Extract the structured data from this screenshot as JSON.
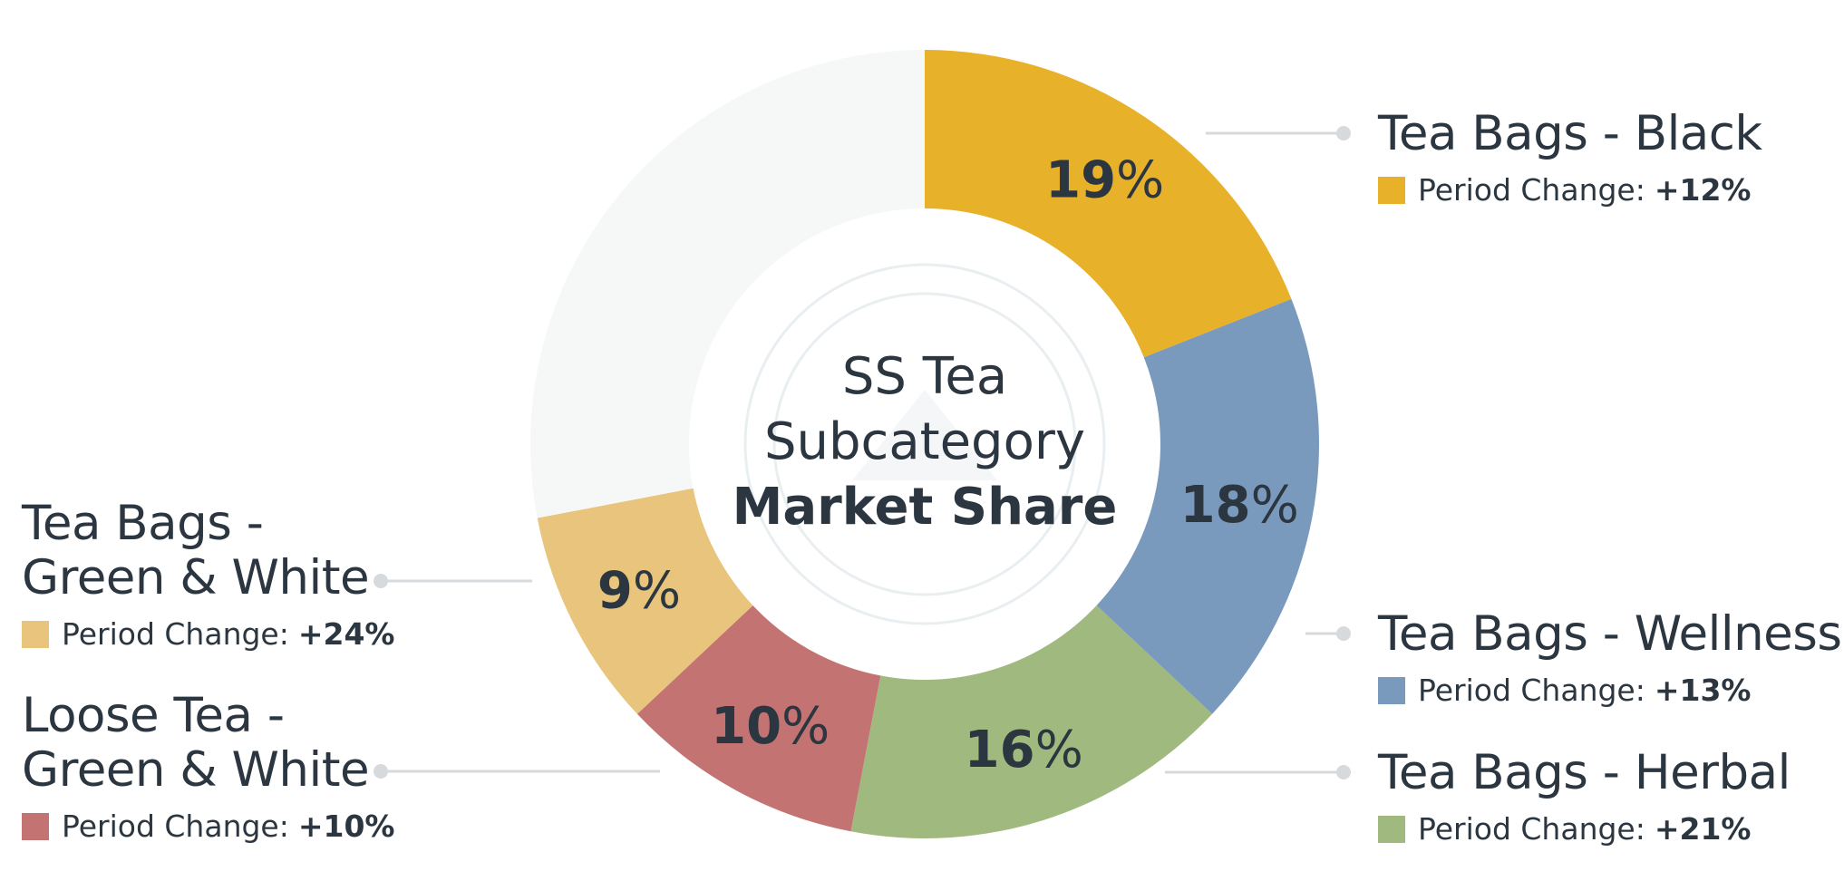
{
  "chart_data": {
    "type": "donut",
    "center_title": {
      "line1": "SS Tea",
      "line2": "Subcategory",
      "line3": "Market Share"
    },
    "change_label": "Period Change:",
    "series": [
      {
        "name": "Tea Bags - Black",
        "name_lines": [
          "Tea Bags - Black"
        ],
        "value": 19,
        "value_label": "19%",
        "period_change": "+12%",
        "color": "#e8b12a"
      },
      {
        "name": "Tea Bags - Wellness",
        "name_lines": [
          "Tea Bags - Wellness"
        ],
        "value": 18,
        "value_label": "18%",
        "period_change": "+13%",
        "color": "#7a9abd"
      },
      {
        "name": "Tea Bags - Herbal",
        "name_lines": [
          "Tea Bags - Herbal"
        ],
        "value": 16,
        "value_label": "16%",
        "period_change": "+21%",
        "color": "#a0b97e"
      },
      {
        "name": "Loose Tea - Green & White",
        "name_lines": [
          "Loose Tea -",
          "Green & White"
        ],
        "value": 10,
        "value_label": "10%",
        "period_change": "+10%",
        "color": "#c47373"
      },
      {
        "name": "Tea Bags - Green & White",
        "name_lines": [
          "Tea Bags -",
          "Green & White"
        ],
        "value": 9,
        "value_label": "9%",
        "period_change": "+24%",
        "color": "#e8c47c"
      }
    ],
    "remainder": {
      "value": 28,
      "color": "#f6f8f8"
    },
    "leader_color": "#d6dadd"
  }
}
